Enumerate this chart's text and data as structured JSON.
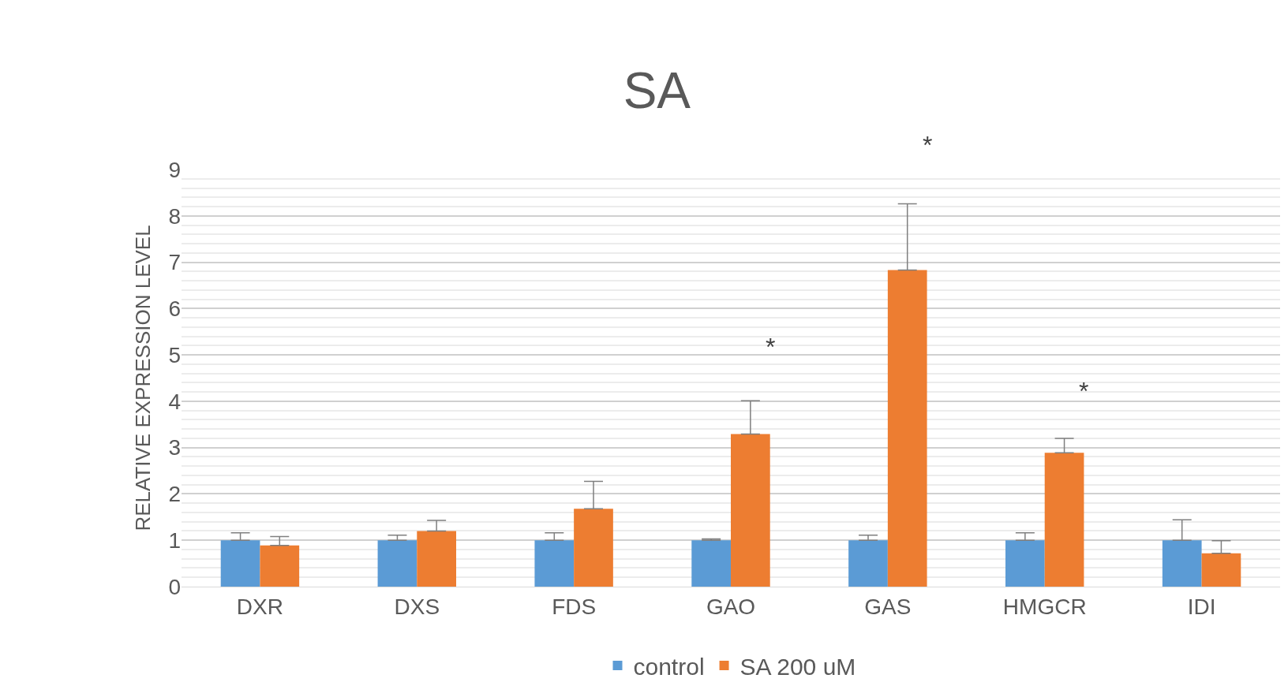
{
  "chart_data": {
    "type": "bar",
    "title": "SA",
    "ylabel": "RELATIVE EXPRESSION LEVEL",
    "categories": [
      "DXR",
      "DXS",
      "FDS",
      "GAO",
      "GAS",
      "HMGCR",
      "IDI"
    ],
    "series": [
      {
        "name": "control",
        "color": "#5b9bd5",
        "values": [
          1,
          1,
          1,
          1,
          1,
          1,
          1
        ],
        "errors": [
          0.16,
          0.11,
          0.16,
          0.03,
          0.11,
          0.16,
          0.44
        ]
      },
      {
        "name": "SA 200 uM",
        "color": "#ed7d31",
        "values": [
          0.89,
          1.2,
          1.68,
          3.29,
          6.83,
          2.89,
          0.72
        ],
        "errors": [
          0.19,
          0.23,
          0.59,
          0.72,
          1.43,
          0.31,
          0.27
        ]
      }
    ],
    "ylim": [
      0,
      9
    ],
    "yticks": [
      0,
      1,
      2,
      3,
      4,
      5,
      6,
      7,
      8,
      9
    ],
    "grid": "y",
    "legend": "bottom",
    "annotations": [
      "*",
      "*",
      "*"
    ]
  }
}
